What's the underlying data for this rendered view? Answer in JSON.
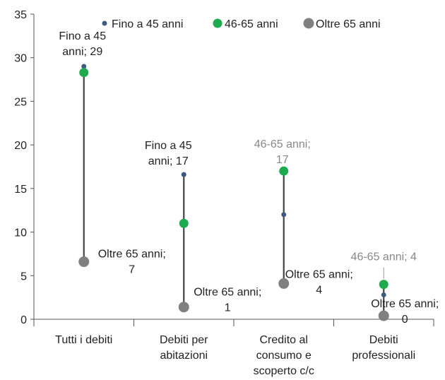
{
  "chart_data": {
    "type": "scatter",
    "title": "",
    "xlabel": "",
    "ylabel": "",
    "ylim": [
      0,
      35
    ],
    "yticks": [
      0,
      5,
      10,
      15,
      20,
      25,
      30,
      35
    ],
    "grid": false,
    "legend_position": "top",
    "categories": [
      [
        "Tutti i debiti"
      ],
      [
        "Debiti per",
        "abitazioni"
      ],
      [
        "Credito al",
        "consumo e",
        "scoperto c/c"
      ],
      [
        "Debiti",
        "professionali"
      ]
    ],
    "series": [
      {
        "name": "Fino a 45 anni",
        "color": "#3c5a82",
        "values": [
          29,
          16.6,
          12,
          2.8
        ]
      },
      {
        "name": "46-65 anni",
        "color": "#1faa4f",
        "values": [
          28.3,
          11,
          17,
          4
        ]
      },
      {
        "name": "Oltre 65 anni",
        "color": "#808080",
        "values": [
          6.6,
          1.4,
          4.1,
          0.4
        ]
      }
    ],
    "data_labels": [
      {
        "category": 0,
        "series": 0,
        "lines": [
          "Fino a 45",
          "anni; 29"
        ],
        "color": "#222222"
      },
      {
        "category": 0,
        "series": 2,
        "lines": [
          "Oltre 65 anni;",
          "7"
        ],
        "color": "#222222"
      },
      {
        "category": 1,
        "series": 0,
        "lines": [
          "Fino a 45",
          "anni; 17"
        ],
        "color": "#222222"
      },
      {
        "category": 1,
        "series": 2,
        "lines": [
          "Oltre 65 anni;",
          "1"
        ],
        "color": "#222222"
      },
      {
        "category": 2,
        "series": 1,
        "lines": [
          "46-65 anni;",
          "17"
        ],
        "color": "#888888"
      },
      {
        "category": 2,
        "series": 2,
        "lines": [
          "Oltre 65 anni;",
          "4"
        ],
        "color": "#222222"
      },
      {
        "category": 3,
        "series": 1,
        "lines": [
          "46-65 anni; 4"
        ],
        "color": "#888888"
      },
      {
        "category": 3,
        "series": 2,
        "lines": [
          "Oltre 65 anni;",
          "0"
        ],
        "color": "#222222"
      }
    ]
  }
}
